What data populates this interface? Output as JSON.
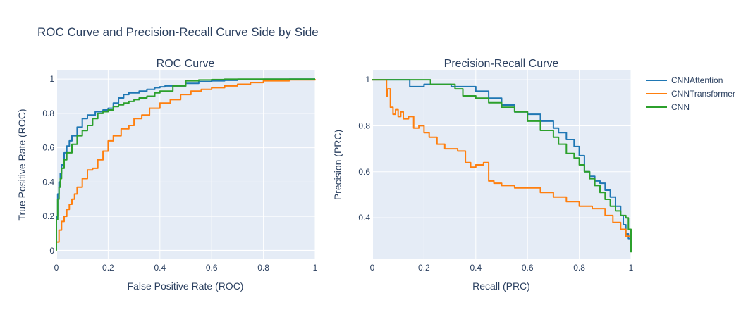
{
  "title": "ROC Curve and Precision-Recall Curve Side by Side",
  "colors": {
    "plot_bg": "#e5ecf6",
    "grid": "#ffffff",
    "text": "#2a3f5f"
  },
  "legend": [
    {
      "name": "CNNAttention",
      "color": "#1f77b4"
    },
    {
      "name": "CNNTransformer",
      "color": "#ff7f0e"
    },
    {
      "name": "CNN",
      "color": "#2ca02c"
    }
  ],
  "chart_data": [
    {
      "type": "line",
      "title": "ROC Curve",
      "xlabel": "False Positive Rate (ROC)",
      "ylabel": "True Positive Rate (ROC)",
      "xlim": [
        0,
        1
      ],
      "ylim": [
        -0.05,
        1.05
      ],
      "x_ticks": [
        0,
        0.2,
        0.4,
        0.6,
        0.8,
        1
      ],
      "x_tick_labels": [
        "0",
        "0.2",
        "0.4",
        "0.6",
        "0.8",
        "1"
      ],
      "y_ticks": [
        0,
        0.2,
        0.4,
        0.6,
        0.8,
        1
      ],
      "y_tick_labels": [
        "0",
        "0.2",
        "0.4",
        "0.6",
        "0.8",
        "1"
      ],
      "grid": true,
      "series": [
        {
          "name": "CNNAttention",
          "color": "#1f77b4",
          "x": [
            0,
            0,
            0.005,
            0.01,
            0.015,
            0.02,
            0.03,
            0.04,
            0.05,
            0.06,
            0.08,
            0.1,
            0.12,
            0.15,
            0.18,
            0.2,
            0.22,
            0.24,
            0.26,
            0.28,
            0.3,
            0.32,
            0.35,
            0.38,
            0.4,
            0.42,
            0.45,
            0.5,
            0.55,
            0.6,
            0.65,
            0.7,
            0.8,
            0.9,
            1
          ],
          "y": [
            0,
            0.2,
            0.33,
            0.4,
            0.45,
            0.5,
            0.57,
            0.61,
            0.64,
            0.67,
            0.72,
            0.77,
            0.79,
            0.81,
            0.82,
            0.83,
            0.86,
            0.89,
            0.91,
            0.92,
            0.92,
            0.93,
            0.94,
            0.95,
            0.955,
            0.96,
            0.96,
            0.975,
            0.985,
            0.99,
            0.993,
            0.997,
            0.999,
            1,
            1
          ]
        },
        {
          "name": "CNNTransformer",
          "color": "#ff7f0e",
          "x": [
            0,
            0,
            0.01,
            0.02,
            0.03,
            0.04,
            0.05,
            0.06,
            0.07,
            0.08,
            0.1,
            0.12,
            0.14,
            0.16,
            0.18,
            0.2,
            0.22,
            0.25,
            0.28,
            0.3,
            0.33,
            0.36,
            0.4,
            0.44,
            0.48,
            0.52,
            0.56,
            0.6,
            0.65,
            0.7,
            0.75,
            0.8,
            0.9,
            1
          ],
          "y": [
            0,
            0.05,
            0.12,
            0.17,
            0.2,
            0.24,
            0.27,
            0.3,
            0.33,
            0.37,
            0.42,
            0.47,
            0.48,
            0.53,
            0.58,
            0.64,
            0.67,
            0.71,
            0.73,
            0.77,
            0.79,
            0.83,
            0.86,
            0.88,
            0.91,
            0.93,
            0.94,
            0.95,
            0.96,
            0.97,
            0.98,
            0.99,
            0.996,
            1
          ]
        },
        {
          "name": "CNN",
          "color": "#2ca02c",
          "x": [
            0,
            0,
            0.005,
            0.01,
            0.015,
            0.02,
            0.03,
            0.04,
            0.06,
            0.08,
            0.1,
            0.12,
            0.14,
            0.16,
            0.18,
            0.2,
            0.22,
            0.24,
            0.26,
            0.28,
            0.3,
            0.32,
            0.35,
            0.38,
            0.4,
            0.45,
            0.5,
            0.55,
            0.6,
            0.65,
            0.7,
            0.8,
            0.9,
            1
          ],
          "y": [
            0,
            0.18,
            0.3,
            0.37,
            0.42,
            0.48,
            0.53,
            0.57,
            0.62,
            0.67,
            0.7,
            0.73,
            0.77,
            0.8,
            0.81,
            0.82,
            0.84,
            0.85,
            0.86,
            0.87,
            0.88,
            0.89,
            0.9,
            0.92,
            0.93,
            0.96,
            0.99,
            0.995,
            0.997,
            0.999,
            1,
            1,
            1,
            1
          ]
        }
      ]
    },
    {
      "type": "line",
      "title": "Precision-Recall Curve",
      "xlabel": "Recall (PRC)",
      "ylabel": "Precision (PRC)",
      "xlim": [
        0,
        1
      ],
      "ylim": [
        0.22,
        1.04
      ],
      "x_ticks": [
        0,
        0.2,
        0.4,
        0.6,
        0.8,
        1
      ],
      "x_tick_labels": [
        "0",
        "0.2",
        "0.4",
        "0.6",
        "0.8",
        "1"
      ],
      "y_ticks": [
        0.4,
        0.6,
        0.8,
        1
      ],
      "y_tick_labels": [
        "0.4",
        "0.6",
        "0.8",
        "1"
      ],
      "grid": true,
      "series": [
        {
          "name": "CNNAttention",
          "color": "#1f77b4",
          "x": [
            0,
            0.14,
            0.145,
            0.2,
            0.3,
            0.305,
            0.35,
            0.4,
            0.45,
            0.5,
            0.55,
            0.6,
            0.65,
            0.7,
            0.72,
            0.75,
            0.78,
            0.8,
            0.82,
            0.84,
            0.86,
            0.88,
            0.9,
            0.92,
            0.94,
            0.96,
            0.97,
            0.98,
            0.99,
            1,
            1
          ],
          "y": [
            1,
            1,
            0.97,
            0.98,
            0.98,
            0.97,
            0.97,
            0.95,
            0.92,
            0.89,
            0.86,
            0.85,
            0.82,
            0.79,
            0.77,
            0.74,
            0.71,
            0.67,
            0.6,
            0.58,
            0.56,
            0.55,
            0.52,
            0.49,
            0.45,
            0.41,
            0.37,
            0.33,
            0.31,
            0.28,
            0.26
          ]
        },
        {
          "name": "CNNTransformer",
          "color": "#ff7f0e",
          "x": [
            0,
            0.05,
            0.055,
            0.06,
            0.07,
            0.08,
            0.09,
            0.1,
            0.11,
            0.12,
            0.14,
            0.16,
            0.18,
            0.2,
            0.22,
            0.25,
            0.28,
            0.3,
            0.33,
            0.36,
            0.38,
            0.4,
            0.43,
            0.45,
            0.47,
            0.5,
            0.55,
            0.6,
            0.65,
            0.7,
            0.75,
            0.8,
            0.85,
            0.9,
            0.93,
            0.96,
            0.98,
            1
          ],
          "y": [
            1,
            1,
            0.93,
            0.96,
            0.88,
            0.85,
            0.87,
            0.84,
            0.86,
            0.83,
            0.84,
            0.79,
            0.8,
            0.77,
            0.75,
            0.72,
            0.7,
            0.7,
            0.69,
            0.64,
            0.62,
            0.63,
            0.64,
            0.56,
            0.55,
            0.54,
            0.53,
            0.53,
            0.51,
            0.49,
            0.47,
            0.45,
            0.44,
            0.41,
            0.38,
            0.35,
            0.32,
            0.28
          ]
        },
        {
          "name": "CNN",
          "color": "#2ca02c",
          "x": [
            0,
            0.22,
            0.225,
            0.25,
            0.3,
            0.32,
            0.35,
            0.4,
            0.45,
            0.5,
            0.55,
            0.6,
            0.65,
            0.7,
            0.72,
            0.75,
            0.78,
            0.8,
            0.82,
            0.84,
            0.86,
            0.88,
            0.9,
            0.92,
            0.94,
            0.96,
            0.98,
            0.99,
            1,
            1
          ],
          "y": [
            1,
            1,
            0.98,
            0.98,
            0.98,
            0.96,
            0.93,
            0.92,
            0.9,
            0.88,
            0.86,
            0.82,
            0.78,
            0.75,
            0.72,
            0.68,
            0.66,
            0.63,
            0.6,
            0.57,
            0.54,
            0.51,
            0.48,
            0.45,
            0.43,
            0.41,
            0.4,
            0.35,
            0.3,
            0.25
          ]
        }
      ]
    }
  ]
}
